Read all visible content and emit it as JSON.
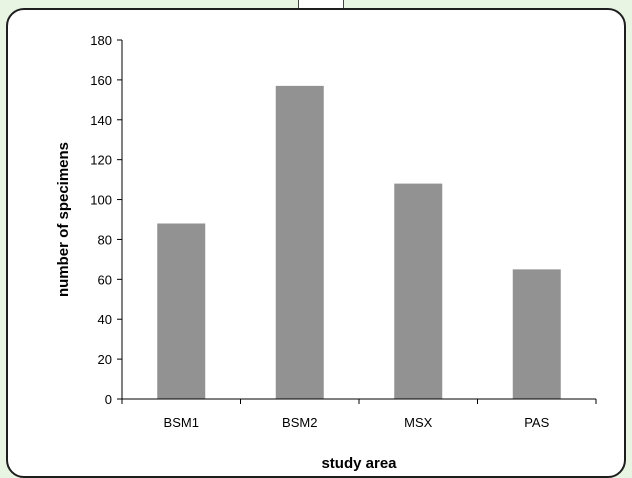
{
  "chart_data": {
    "type": "bar",
    "categories": [
      "BSM1",
      "BSM2",
      "MSX",
      "PAS"
    ],
    "values": [
      88,
      157,
      108,
      65
    ],
    "xlabel": "study area",
    "ylabel": "number of specimens",
    "ylim": [
      0,
      180
    ],
    "yticks": [
      0,
      20,
      40,
      60,
      80,
      100,
      120,
      140,
      160,
      180
    ],
    "grid": false,
    "legend": "none",
    "bar_color": "#929292"
  }
}
